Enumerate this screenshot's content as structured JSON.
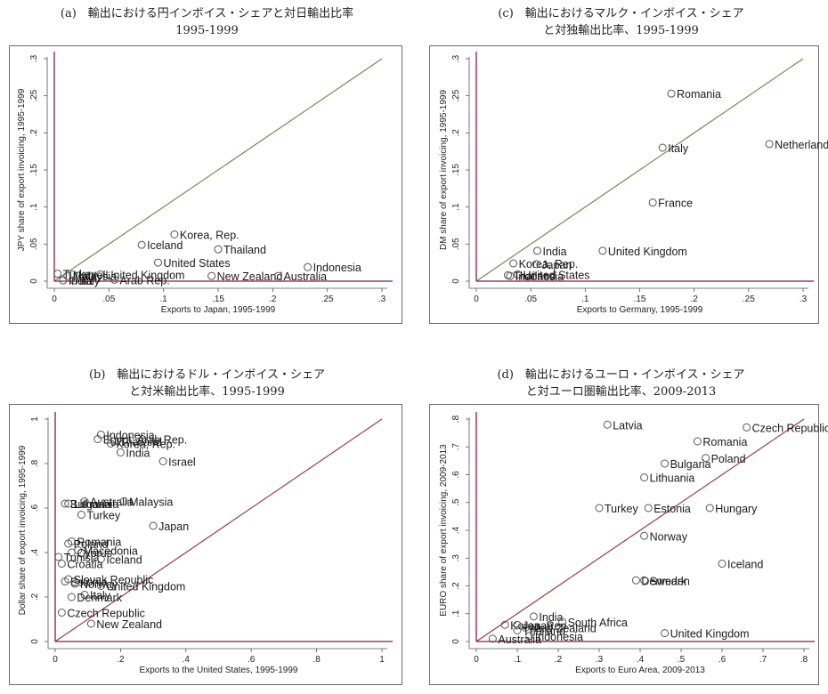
{
  "figure": {
    "panels": [
      {
        "id": "a",
        "title": "(a)　輸出における円インボイス・シェアと対日輸出比率",
        "subtitle": "1995-1999"
      },
      {
        "id": "c",
        "title": "(c)　輸出におけるマルク・インボイス・シェア",
        "subtitle": "と対独輸出比率、1995-1999"
      },
      {
        "id": "b",
        "title": "(b)　輸出におけるドル・インボイス・シェア",
        "subtitle": "と対米輸出比率、1995-1999"
      },
      {
        "id": "d",
        "title": "(d)　輸出におけるユーロ・インボイス・シェア",
        "subtitle": "と対ユーロ圏輸出比率、2009-2013"
      }
    ]
  },
  "chart_data": [
    {
      "id": "a",
      "type": "scatter",
      "title": "(a)　輸出における円インボイス・シェアと対日輸出比率 1995-1999",
      "xlabel": "Exports to Japan, 1995-1999",
      "ylabel": "JPY share of export invoicing, 1995-1999",
      "xlim": [
        0,
        0.3
      ],
      "ylim": [
        0,
        0.3
      ],
      "xticks": [
        0,
        0.05,
        0.1,
        0.15,
        0.2,
        0.25,
        0.3
      ],
      "xtick_labels": [
        "0",
        ".05",
        ".1",
        ".15",
        ".2",
        ".25",
        ".3"
      ],
      "yticks": [
        0,
        0.05,
        0.1,
        0.15,
        0.2,
        0.25,
        0.3
      ],
      "ytick_labels": [
        "0",
        ".05",
        ".1",
        ".15",
        ".2",
        ".25",
        ".3"
      ],
      "line_color": "#6b8e4e",
      "points": [
        {
          "label": "Korea, Rep.",
          "x": 0.11,
          "y": 0.063
        },
        {
          "label": "Iceland",
          "x": 0.08,
          "y": 0.049
        },
        {
          "label": "Thailand",
          "x": 0.15,
          "y": 0.043
        },
        {
          "label": "United States",
          "x": 0.095,
          "y": 0.025
        },
        {
          "label": "Indonesia",
          "x": 0.232,
          "y": 0.019
        },
        {
          "label": "New Zealand",
          "x": 0.144,
          "y": 0.007
        },
        {
          "label": "Australia",
          "x": 0.205,
          "y": 0.007
        },
        {
          "label": "United Kingdom",
          "x": 0.042,
          "y": 0.009
        },
        {
          "label": "Turkey",
          "x": 0.003,
          "y": 0.01
        },
        {
          "label": "Israel",
          "x": 0.017,
          "y": 0.009
        },
        {
          "label": "Malaysia",
          "x": 0.012,
          "y": 0.007
        },
        {
          "label": "Italy",
          "x": 0.018,
          "y": 0.001
        },
        {
          "label": "Arab Rep.",
          "x": 0.055,
          "y": 0.002
        },
        {
          "label": "India",
          "x": 0.008,
          "y": 0.001
        }
      ]
    },
    {
      "id": "c",
      "type": "scatter",
      "title": "(c)　輸出におけるマルク・インボイス・シェア と対独輸出比率、1995-1999",
      "xlabel": "Exports to Germany, 1995-1999",
      "ylabel": "DM share of export invoicing, 1995-1999",
      "xlim": [
        0,
        0.3
      ],
      "ylim": [
        0,
        0.3
      ],
      "xticks": [
        0,
        0.05,
        0.1,
        0.15,
        0.2,
        0.25,
        0.3
      ],
      "xtick_labels": [
        "0",
        ".05",
        ".1",
        ".15",
        ".2",
        ".25",
        ".3"
      ],
      "yticks": [
        0,
        0.05,
        0.1,
        0.15,
        0.2,
        0.25,
        0.3
      ],
      "ytick_labels": [
        "0",
        ".05",
        ".1",
        ".15",
        ".2",
        ".25",
        ".3"
      ],
      "line_color": "#6b8e4e",
      "points": [
        {
          "label": "Romania",
          "x": 0.179,
          "y": 0.253
        },
        {
          "label": "Italy",
          "x": 0.171,
          "y": 0.18
        },
        {
          "label": "Netherlands",
          "x": 0.269,
          "y": 0.185
        },
        {
          "label": "France",
          "x": 0.162,
          "y": 0.106
        },
        {
          "label": "India",
          "x": 0.056,
          "y": 0.041
        },
        {
          "label": "United Kingdom",
          "x": 0.116,
          "y": 0.041
        },
        {
          "label": "Korea, Rep.",
          "x": 0.034,
          "y": 0.024
        },
        {
          "label": "Japan",
          "x": 0.055,
          "y": 0.023
        },
        {
          "label": "United States",
          "x": 0.038,
          "y": 0.009
        },
        {
          "label": "Thailand",
          "x": 0.029,
          "y": 0.008
        },
        {
          "label": "Indonesia",
          "x": 0.031,
          "y": 0.007
        }
      ]
    },
    {
      "id": "b",
      "type": "scatter",
      "title": "(b)　輸出におけるドル・インボイス・シェア と対米輸出比率、1995-1999",
      "xlabel": "Exports to the United States, 1995-1999",
      "ylabel": "Dollar share of export invoicing, 1995-1999",
      "xlim": [
        0,
        1
      ],
      "ylim": [
        0,
        1
      ],
      "xticks": [
        0,
        0.2,
        0.4,
        0.6,
        0.8,
        1
      ],
      "xtick_labels": [
        "0",
        ".2",
        ".4",
        ".6",
        ".8",
        "1"
      ],
      "yticks": [
        0,
        0.2,
        0.4,
        0.6,
        0.8,
        1
      ],
      "ytick_labels": [
        "0",
        ".2",
        ".4",
        ".6",
        ".8",
        "1"
      ],
      "line_color": "#9e3a46",
      "points": [
        {
          "label": "Indonesia",
          "x": 0.14,
          "y": 0.93
        },
        {
          "label": "Egypt, Arab Rep.",
          "x": 0.13,
          "y": 0.91
        },
        {
          "label": "Thailand",
          "x": 0.18,
          "y": 0.9
        },
        {
          "label": "Korea, Rep.",
          "x": 0.17,
          "y": 0.89
        },
        {
          "label": "India",
          "x": 0.2,
          "y": 0.85
        },
        {
          "label": "Israel",
          "x": 0.33,
          "y": 0.81
        },
        {
          "label": "Australia",
          "x": 0.09,
          "y": 0.63
        },
        {
          "label": "Malaysia",
          "x": 0.21,
          "y": 0.63
        },
        {
          "label": "Bulgaria",
          "x": 0.03,
          "y": 0.62
        },
        {
          "label": "Lithuania",
          "x": 0.04,
          "y": 0.62
        },
        {
          "label": "Turkey",
          "x": 0.08,
          "y": 0.57
        },
        {
          "label": "Japan",
          "x": 0.3,
          "y": 0.52
        },
        {
          "label": "Romania",
          "x": 0.05,
          "y": 0.45
        },
        {
          "label": "Poland",
          "x": 0.04,
          "y": 0.44
        },
        {
          "label": "Macedonia",
          "x": 0.07,
          "y": 0.41
        },
        {
          "label": "Cyprus",
          "x": 0.05,
          "y": 0.4
        },
        {
          "label": "Tunisia",
          "x": 0.01,
          "y": 0.38
        },
        {
          "label": "Iceland",
          "x": 0.14,
          "y": 0.37
        },
        {
          "label": "Croatia",
          "x": 0.02,
          "y": 0.35
        },
        {
          "label": "Slovak Republic",
          "x": 0.04,
          "y": 0.28
        },
        {
          "label": "Estonia",
          "x": 0.03,
          "y": 0.27
        },
        {
          "label": "Norway",
          "x": 0.06,
          "y": 0.26
        },
        {
          "label": "United Kingdom",
          "x": 0.14,
          "y": 0.25
        },
        {
          "label": "Italy",
          "x": 0.09,
          "y": 0.21
        },
        {
          "label": "Denmark",
          "x": 0.05,
          "y": 0.2
        },
        {
          "label": "Czech Republic",
          "x": 0.02,
          "y": 0.13
        },
        {
          "label": "New Zealand",
          "x": 0.11,
          "y": 0.08
        }
      ]
    },
    {
      "id": "d",
      "type": "scatter",
      "title": "(d)　輸出におけるユーロ・インボイス・シェア と対ユーロ圏輸出比率、2009-2013",
      "xlabel": "Exports to Euro Area, 2009-2013",
      "ylabel": "EURO share of export invoicing, 2009-2013",
      "xlim": [
        0,
        0.8
      ],
      "ylim": [
        0,
        0.8
      ],
      "xticks": [
        0,
        0.1,
        0.2,
        0.3,
        0.4,
        0.5,
        0.6,
        0.7,
        0.8
      ],
      "xtick_labels": [
        "0",
        ".1",
        ".2",
        ".3",
        ".4",
        ".5",
        ".6",
        ".7",
        ".8"
      ],
      "yticks": [
        0,
        0.1,
        0.2,
        0.3,
        0.4,
        0.5,
        0.6,
        0.7,
        0.8
      ],
      "ytick_labels": [
        "0",
        ".1",
        ".2",
        ".3",
        ".4",
        ".5",
        ".6",
        ".7",
        ".8"
      ],
      "line_color": "#9e3a46",
      "points": [
        {
          "label": "Latvia",
          "x": 0.32,
          "y": 0.78
        },
        {
          "label": "Czech Republic",
          "x": 0.66,
          "y": 0.77
        },
        {
          "label": "Romania",
          "x": 0.54,
          "y": 0.72
        },
        {
          "label": "Poland",
          "x": 0.56,
          "y": 0.66
        },
        {
          "label": "Bulgaria",
          "x": 0.46,
          "y": 0.64
        },
        {
          "label": "Lithuania",
          "x": 0.41,
          "y": 0.59
        },
        {
          "label": "Turkey",
          "x": 0.3,
          "y": 0.48
        },
        {
          "label": "Estonia",
          "x": 0.42,
          "y": 0.48
        },
        {
          "label": "Hungary",
          "x": 0.57,
          "y": 0.48
        },
        {
          "label": "Norway",
          "x": 0.41,
          "y": 0.38
        },
        {
          "label": "Iceland",
          "x": 0.6,
          "y": 0.28
        },
        {
          "label": "Denmark",
          "x": 0.39,
          "y": 0.22
        },
        {
          "label": "Sweden",
          "x": 0.41,
          "y": 0.22
        },
        {
          "label": "India",
          "x": 0.14,
          "y": 0.09
        },
        {
          "label": "South Africa",
          "x": 0.21,
          "y": 0.07
        },
        {
          "label": "Korea, Rep.",
          "x": 0.07,
          "y": 0.06
        },
        {
          "label": "Japan",
          "x": 0.1,
          "y": 0.06
        },
        {
          "label": "New Zealand",
          "x": 0.12,
          "y": 0.05
        },
        {
          "label": "Thailand",
          "x": 0.1,
          "y": 0.04
        },
        {
          "label": "Indonesia",
          "x": 0.13,
          "y": 0.02
        },
        {
          "label": "United Kingdom",
          "x": 0.46,
          "y": 0.03
        },
        {
          "label": "Australia",
          "x": 0.04,
          "y": 0.01
        }
      ]
    }
  ]
}
